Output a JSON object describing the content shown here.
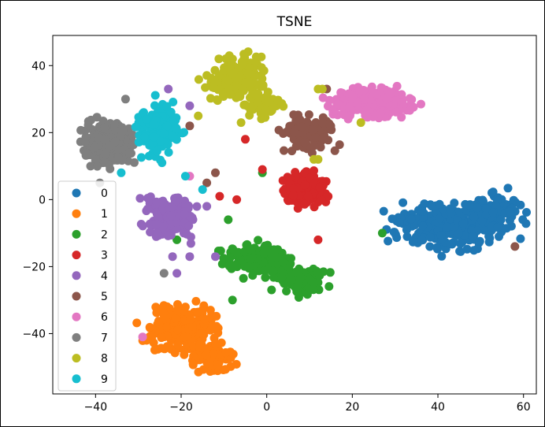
{
  "chart_data": {
    "type": "scatter",
    "title": "TSNE",
    "xlabel": "",
    "ylabel": "",
    "xlim": [
      -50,
      63
    ],
    "ylim": [
      -58,
      49
    ],
    "x_ticks": [
      -40,
      -20,
      0,
      20,
      40,
      60
    ],
    "y_ticks": [
      40,
      20,
      0,
      -20,
      -40
    ],
    "x_tick_labels": [
      "−40",
      "−20",
      "0",
      "20",
      "40",
      "60"
    ],
    "y_tick_labels": [
      "40",
      "20",
      "0",
      "−20",
      "−40"
    ],
    "grid": false,
    "legend": "lower-left",
    "series": [
      {
        "name": "0",
        "color": "#1f77b4",
        "clusters": [
          {
            "cx": 43,
            "cy": -8,
            "sx": 8,
            "sy": 4,
            "n": 260
          },
          {
            "cx": 53,
            "cy": -3,
            "sx": 4,
            "sy": 3,
            "n": 90
          }
        ],
        "extras": []
      },
      {
        "name": "1",
        "color": "#ff7f0e",
        "clusters": [
          {
            "cx": -20,
            "cy": -38,
            "sx": 5,
            "sy": 5,
            "n": 200
          },
          {
            "cx": -13,
            "cy": -47,
            "sx": 3,
            "sy": 3,
            "n": 80
          }
        ],
        "extras": []
      },
      {
        "name": "2",
        "color": "#2ca02c",
        "clusters": [
          {
            "cx": -2,
            "cy": -18,
            "sx": 5,
            "sy": 3,
            "n": 170
          },
          {
            "cx": 8,
            "cy": -24,
            "sx": 4,
            "sy": 2.5,
            "n": 100
          }
        ],
        "extras": [
          [
            -9,
            -6
          ],
          [
            -8,
            -30
          ],
          [
            -21,
            -12
          ],
          [
            -1,
            8
          ],
          [
            27,
            -10
          ]
        ]
      },
      {
        "name": "3",
        "color": "#d62728",
        "clusters": [
          {
            "cx": 9,
            "cy": 3,
            "sx": 3,
            "sy": 3,
            "n": 200
          }
        ],
        "extras": [
          [
            -5,
            18
          ],
          [
            -11,
            1
          ],
          [
            -7,
            0
          ],
          [
            -1,
            9
          ],
          [
            12,
            -12
          ]
        ]
      },
      {
        "name": "4",
        "color": "#9467bd",
        "clusters": [
          {
            "cx": -23,
            "cy": -5,
            "sx": 4,
            "sy": 4,
            "n": 130
          }
        ],
        "extras": [
          [
            -23,
            33
          ],
          [
            -18,
            28
          ],
          [
            -22,
            -17
          ],
          [
            -21,
            -22
          ],
          [
            -18,
            -17
          ],
          [
            -12,
            -17
          ],
          [
            -14,
            -2
          ]
        ]
      },
      {
        "name": "5",
        "color": "#8c564b",
        "clusters": [
          {
            "cx": 10,
            "cy": 20,
            "sx": 4,
            "sy": 3,
            "n": 110
          }
        ],
        "extras": [
          [
            -12,
            8
          ],
          [
            -14,
            5
          ],
          [
            -18,
            22
          ],
          [
            13,
            23
          ],
          [
            19,
            27
          ],
          [
            14,
            33
          ],
          [
            58,
            -14
          ]
        ]
      },
      {
        "name": "6",
        "color": "#e377c2",
        "clusters": [
          {
            "cx": 25,
            "cy": 29,
            "sx": 6,
            "sy": 3,
            "n": 240
          }
        ],
        "extras": [
          [
            -29,
            -41
          ],
          [
            -18,
            7
          ]
        ]
      },
      {
        "name": "7",
        "color": "#7f7f7f",
        "clusters": [
          {
            "cx": -37,
            "cy": 17,
            "sx": 4,
            "sy": 4,
            "n": 190
          }
        ],
        "extras": [
          [
            -39,
            5
          ],
          [
            -33,
            30
          ],
          [
            -24,
            -22
          ]
        ]
      },
      {
        "name": "8",
        "color": "#bcbd22",
        "clusters": [
          {
            "cx": -7,
            "cy": 36,
            "sx": 4,
            "sy": 4,
            "n": 190
          },
          {
            "cx": -1,
            "cy": 28,
            "sx": 3,
            "sy": 2,
            "n": 50
          }
        ],
        "extras": [
          [
            12,
            33
          ],
          [
            13,
            33
          ],
          [
            11,
            12
          ],
          [
            12,
            12
          ],
          [
            -16,
            25
          ],
          [
            22,
            23
          ],
          [
            -6,
            23
          ]
        ]
      },
      {
        "name": "9",
        "color": "#17becf",
        "clusters": [
          {
            "cx": -25,
            "cy": 21,
            "sx": 3,
            "sy": 5,
            "n": 170
          }
        ],
        "extras": [
          [
            -15,
            3
          ],
          [
            -19,
            7
          ],
          [
            -34,
            8
          ]
        ]
      }
    ]
  }
}
